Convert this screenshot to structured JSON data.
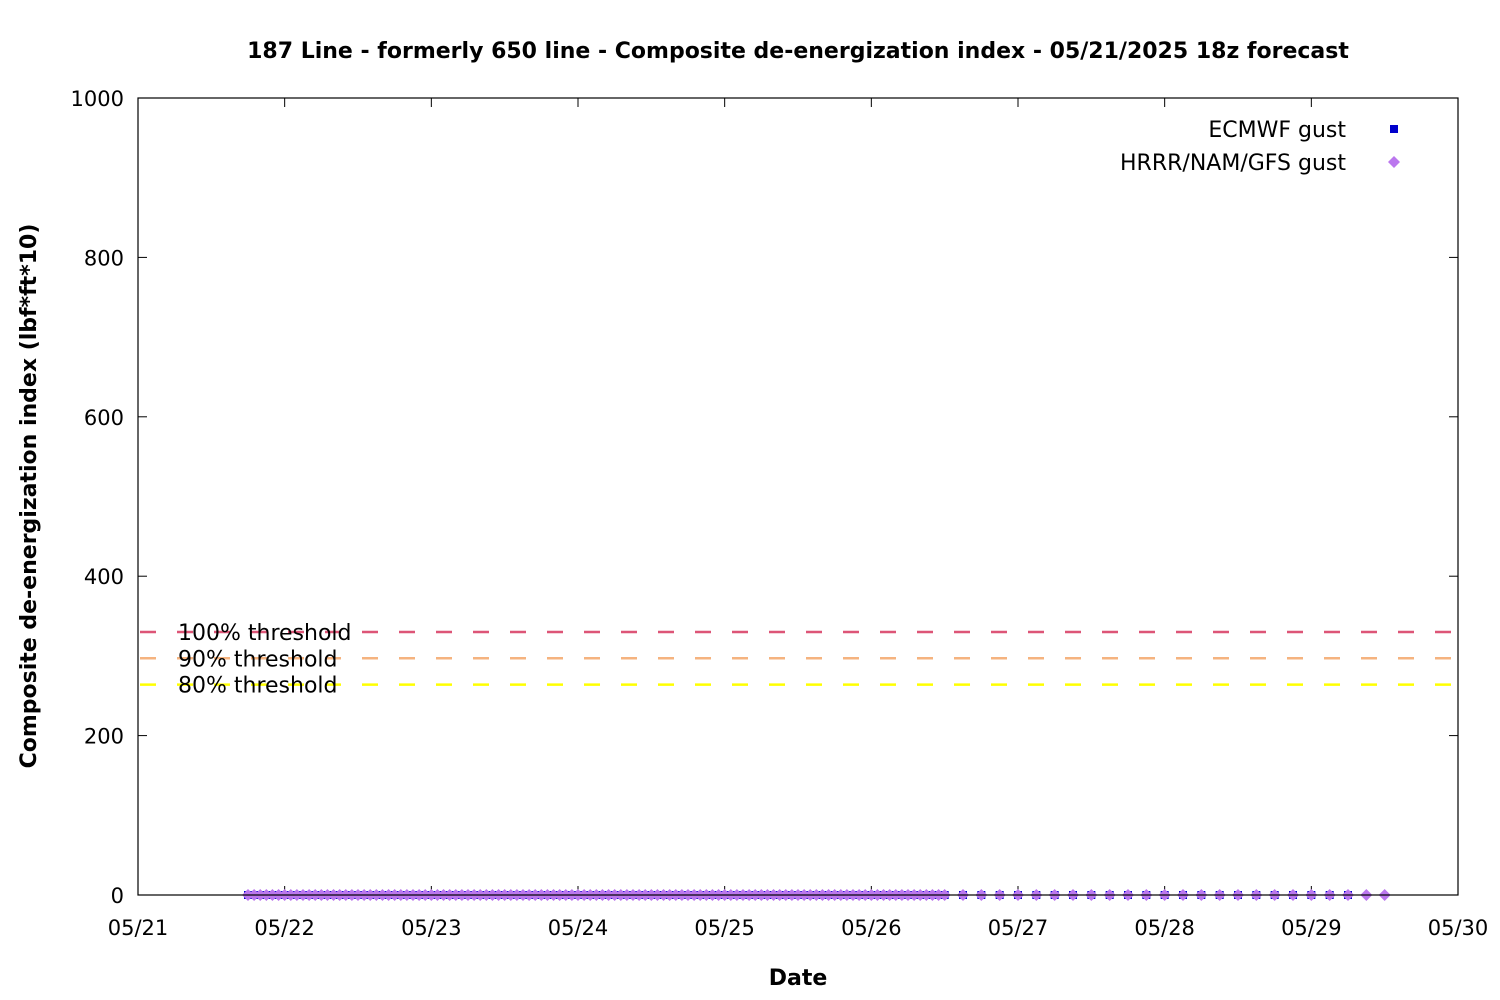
{
  "chart_data": {
    "type": "scatter",
    "title": "187 Line - formerly 650 line - Composite de-energization index - 05/21/2025 18z forecast",
    "xlabel": "Date",
    "ylabel": "Composite de-energization index (lbf*ft*10)",
    "x_ticks": [
      "05/21",
      "05/22",
      "05/23",
      "05/24",
      "05/25",
      "05/26",
      "05/27",
      "05/28",
      "05/29",
      "05/30"
    ],
    "x_range": [
      "2025-05-21",
      "2025-05-30"
    ],
    "y_ticks": [
      0,
      200,
      400,
      600,
      800,
      1000
    ],
    "ylim": [
      0,
      1000
    ],
    "grid": false,
    "legend_position": "top-right",
    "series": [
      {
        "name": "ECMWF gust",
        "marker": "square",
        "color": "#0000cc",
        "x_start": "2025-05-21T18:00",
        "x_end": "2025-05-29T06:00",
        "dense_until": "2025-05-26T12:00",
        "step_hours_dense": 1,
        "step_hours_sparse": 3,
        "value": 0
      },
      {
        "name": "HRRR/NAM/GFS gust",
        "marker": "diamond",
        "color": "#bb77ee",
        "x_start": "2025-05-21T18:00",
        "x_end": "2025-05-29T12:00",
        "dense_until": "2025-05-26T12:00",
        "step_hours_dense": 1,
        "step_hours_sparse": 3,
        "value": 0
      }
    ],
    "thresholds": [
      {
        "label": "100% threshold",
        "value": 330,
        "color": "#dd5577"
      },
      {
        "label": "90% threshold",
        "value": 297,
        "color": "#f5b37f"
      },
      {
        "label": "80% threshold",
        "value": 264,
        "color": "#ffff00"
      }
    ]
  }
}
